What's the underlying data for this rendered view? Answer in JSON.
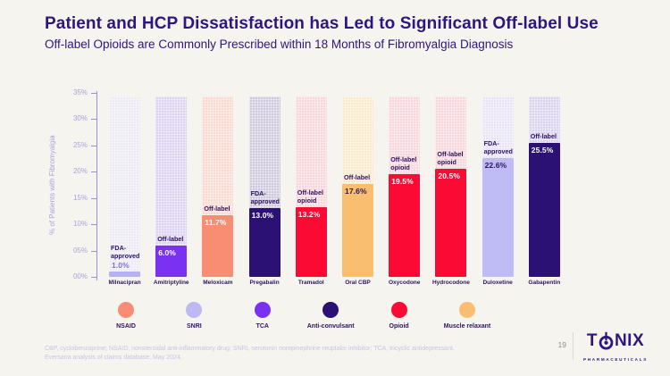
{
  "colors": {
    "background": "#F6F4EE",
    "title": "#2D1582",
    "axis": "#9B90D6",
    "tick_label": "#ABA2DD",
    "bar_label_dark": "#2D1460",
    "footnote": "#CCC2E9"
  },
  "slide": {
    "title": "Patient and HCP Dissatisfaction has Led to Significant Off-label Use",
    "subtitle": "Off-label Opioids are Commonly Prescribed within 18 Months of Fibromyalgia Diagnosis",
    "page_number": "19",
    "footnote_line1": "CBP, cyclobenzaprine; NSAID, nonsteroidal anti-inflammatory drug; SNRI, serotonin norepinephrine reuptake inhibitor; TCA, tricyclic antidepressant.",
    "footnote_line2": "Eversana analysis of claims database, May 2024.",
    "logo": {
      "prefix": "T",
      "suffix": "NIX",
      "tagline": "PHARMACEUTICALS"
    }
  },
  "chart_data": {
    "type": "bar",
    "title": "",
    "xlabel": "",
    "ylabel": "% of Patients with Fibromyalgia",
    "ylim": [
      0,
      35
    ],
    "grid": false,
    "legend_position": "bottom",
    "yticks": [
      {
        "value": 0,
        "label": "00%"
      },
      {
        "value": 5,
        "label": "05%"
      },
      {
        "value": 10,
        "label": "10%"
      },
      {
        "value": 15,
        "label": "15%"
      },
      {
        "value": 20,
        "label": "20%"
      },
      {
        "value": 25,
        "label": "25%"
      },
      {
        "value": 30,
        "label": "30%"
      },
      {
        "value": 35,
        "label": "35%"
      }
    ],
    "categories": [
      "Milnacipran",
      "Amitriptyline",
      "Meloxicam",
      "Pregabalin",
      "Tramadol",
      "Oral CBP",
      "Oxycodone",
      "Hydrocodone",
      "Duloxetine",
      "Gabapentin"
    ],
    "bars": [
      {
        "category": "Milnacipran",
        "drug_class": "SNRI",
        "status_lines": [
          "FDA-",
          "approved"
        ],
        "value": 1.0,
        "value_label": "1.0%",
        "solid_color": "#B6B1EF",
        "track_color": "#ECEAF2",
        "value_placement": "above",
        "value_color": "#7E6EE0"
      },
      {
        "category": "Amitriptyline",
        "drug_class": "TCA",
        "status_lines": [
          "Off-label"
        ],
        "value": 6.0,
        "value_label": "6.0%",
        "solid_color": "#7A31F1",
        "track_color": "#DDD2F2",
        "value_placement": "inside",
        "value_color": "#FFFFFF"
      },
      {
        "category": "Meloxicam",
        "drug_class": "NSAID",
        "status_lines": [
          "Off-label"
        ],
        "value": 11.7,
        "value_label": "11.7%",
        "solid_color": "#F98D74",
        "track_color": "#FAD9CE",
        "value_placement": "inside",
        "value_color": "#FFFFFF"
      },
      {
        "category": "Pregabalin",
        "drug_class": "Anti-convulsant",
        "status_lines": [
          "FDA-",
          "approved"
        ],
        "value": 13.0,
        "value_label": "13.0%",
        "solid_color": "#2B1173",
        "track_color": "#CFC9DE",
        "value_placement": "inside",
        "value_color": "#FFFFFF"
      },
      {
        "category": "Tramadol",
        "drug_class": "Opioid",
        "status_lines": [
          "Off-label",
          "opioid"
        ],
        "value": 13.2,
        "value_label": "13.2%",
        "solid_color": "#FB0A33",
        "track_color": "#F9D5DC",
        "value_placement": "inside",
        "value_color": "#FFFFFF"
      },
      {
        "category": "Oral CBP",
        "drug_class": "Muscle relaxant",
        "status_lines": [
          "Off-label"
        ],
        "value": 17.6,
        "value_label": "17.6%",
        "solid_color": "#F9BE70",
        "track_color": "#FAEACB",
        "value_placement": "inside",
        "value_color": "#2D1460"
      },
      {
        "category": "Oxycodone",
        "drug_class": "Opioid",
        "status_lines": [
          "Off-label",
          "opioid"
        ],
        "value": 19.5,
        "value_label": "19.5%",
        "solid_color": "#FB0A33",
        "track_color": "#F9D5DC",
        "value_placement": "inside",
        "value_color": "#FFFFFF"
      },
      {
        "category": "Hydrocodone",
        "drug_class": "Opioid",
        "status_lines": [
          "Off-label",
          "opioid"
        ],
        "value": 20.5,
        "value_label": "20.5%",
        "solid_color": "#FB0A33",
        "track_color": "#F9D5DC",
        "value_placement": "inside",
        "value_color": "#FFFFFF"
      },
      {
        "category": "Duloxetine",
        "drug_class": "SNRI",
        "status_lines": [
          "FDA-",
          "approved"
        ],
        "value": 22.6,
        "value_label": "22.6%",
        "solid_color": "#BFBBF4",
        "track_color": "#E8E4F6",
        "value_placement": "inside",
        "value_color": "#2D1460"
      },
      {
        "category": "Gabapentin",
        "drug_class": "Anti-convulsant",
        "status_lines": [
          "Off-label"
        ],
        "value": 25.5,
        "value_label": "25.5%",
        "solid_color": "#2B1173",
        "track_color": "#D9D3EE",
        "value_placement": "inside",
        "value_color": "#FFFFFF"
      }
    ],
    "legend": [
      {
        "label": "NSAID",
        "color": "#F98D74"
      },
      {
        "label": "SNRI",
        "color": "#BDB9F3"
      },
      {
        "label": "TCA",
        "color": "#7A31F1"
      },
      {
        "label": "Anti-convulsant",
        "color": "#2B1173"
      },
      {
        "label": "Opioid",
        "color": "#FB0A33"
      },
      {
        "label": "Muscle relaxant",
        "color": "#F9BE70"
      }
    ]
  }
}
